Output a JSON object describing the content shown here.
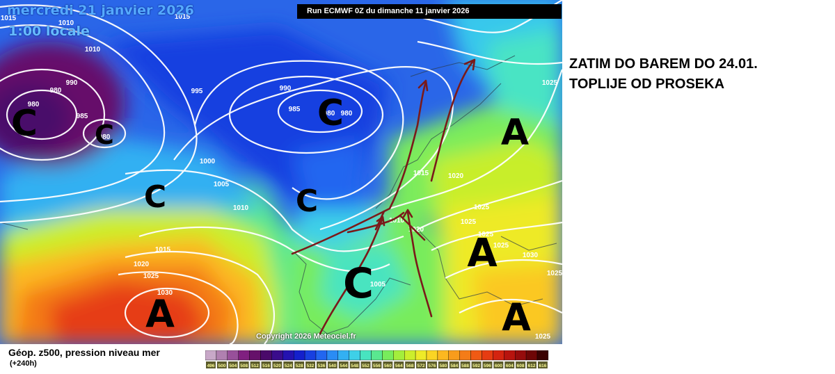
{
  "map": {
    "date_label": "mercredi 21 janvier 2026",
    "time_label": "1:00 locale",
    "run_label": "Run ECMWF 0Z du dimanche 11 janvier 2026",
    "copyright": "Copyright 2026 Meteociel.fr",
    "pressure_centers": [
      {
        "symbol": "C",
        "type": "low"
      },
      {
        "symbol": "C",
        "type": "low"
      },
      {
        "symbol": "C",
        "type": "low"
      },
      {
        "symbol": "C",
        "type": "low"
      },
      {
        "symbol": "C",
        "type": "low"
      },
      {
        "symbol": "C",
        "type": "low"
      },
      {
        "symbol": "A",
        "type": "high"
      },
      {
        "symbol": "A",
        "type": "high"
      },
      {
        "symbol": "A",
        "type": "high"
      },
      {
        "symbol": "A",
        "type": "high"
      }
    ],
    "isobar_labels": [
      "1015",
      "1010",
      "1010",
      "990",
      "980",
      "980",
      "985",
      "980",
      "995",
      "990",
      "985",
      "980",
      "980",
      "1000",
      "1005",
      "1010",
      "1015",
      "1020",
      "1025",
      "1030",
      "1005",
      "1010",
      "1020",
      "1025",
      "1015",
      "1020",
      "1025",
      "1025",
      "1025",
      "1030",
      "1025",
      "1025",
      "1025",
      "1015"
    ],
    "wind_arrow_color": "#7a1a1a",
    "isobar_color": "#ffffff"
  },
  "annotation": {
    "line1": "ZATIM DO BAREM DO 24.01.",
    "line2": "TOPLIJE OD PROSEKA"
  },
  "legend": {
    "title": "Géop. z500, pression niveau mer",
    "subtitle": "(+240h)",
    "ticks": [
      "496",
      "500",
      "504",
      "508",
      "512",
      "516",
      "520",
      "524",
      "528",
      "532",
      "536",
      "540",
      "544",
      "548",
      "552",
      "556",
      "560",
      "564",
      "568",
      "572",
      "576",
      "580",
      "584",
      "588",
      "592",
      "596",
      "600",
      "604",
      "608",
      "612",
      "616"
    ],
    "colors": [
      "#c8a8c8",
      "#b080b0",
      "#98509a",
      "#802080",
      "#66116a",
      "#4a0a6a",
      "#3a0c8c",
      "#2412b0",
      "#1420cc",
      "#1840e0",
      "#2266f0",
      "#2a8cf4",
      "#33b0f2",
      "#3ed0e8",
      "#48e4c0",
      "#5ae890",
      "#78ec5c",
      "#a4ee3c",
      "#ccee2c",
      "#eeea28",
      "#fad424",
      "#fcb820",
      "#f89c1c",
      "#f47c18",
      "#f05a14",
      "#e63c12",
      "#d42410",
      "#b8140e",
      "#960c0c",
      "#6e0606",
      "#3a0202"
    ]
  }
}
